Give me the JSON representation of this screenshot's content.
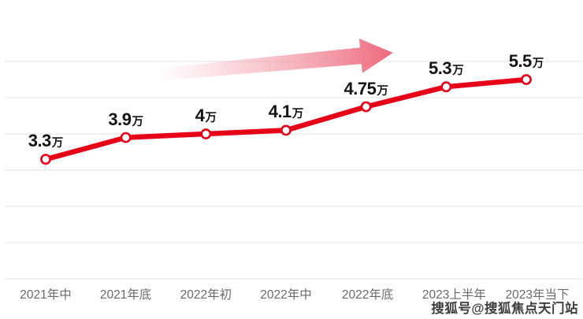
{
  "chart_data": {
    "type": "line",
    "title": "",
    "xlabel": "",
    "ylabel": "",
    "categories": [
      "2021年中",
      "2021年底",
      "2022年初",
      "2022年中",
      "2022年底",
      "2023上半年",
      "2023年当下"
    ],
    "values": [
      3.3,
      3.9,
      4.0,
      4.1,
      4.75,
      5.3,
      5.5
    ],
    "value_labels": [
      "3.3",
      "3.9",
      "4",
      "4.1",
      "4.75",
      "5.3",
      "5.5"
    ],
    "unit": "万",
    "ylim": [
      0,
      6
    ],
    "grid": true,
    "gridline_count": 7,
    "legend_position": "none",
    "line_color": "#e60018",
    "marker_fill": "#ffffff",
    "annotations": [
      {
        "type": "trend-arrow",
        "direction": "up-right",
        "color": "#ec5f74"
      }
    ]
  },
  "watermark": {
    "text": "搜狐号@搜狐焦点天门站"
  }
}
